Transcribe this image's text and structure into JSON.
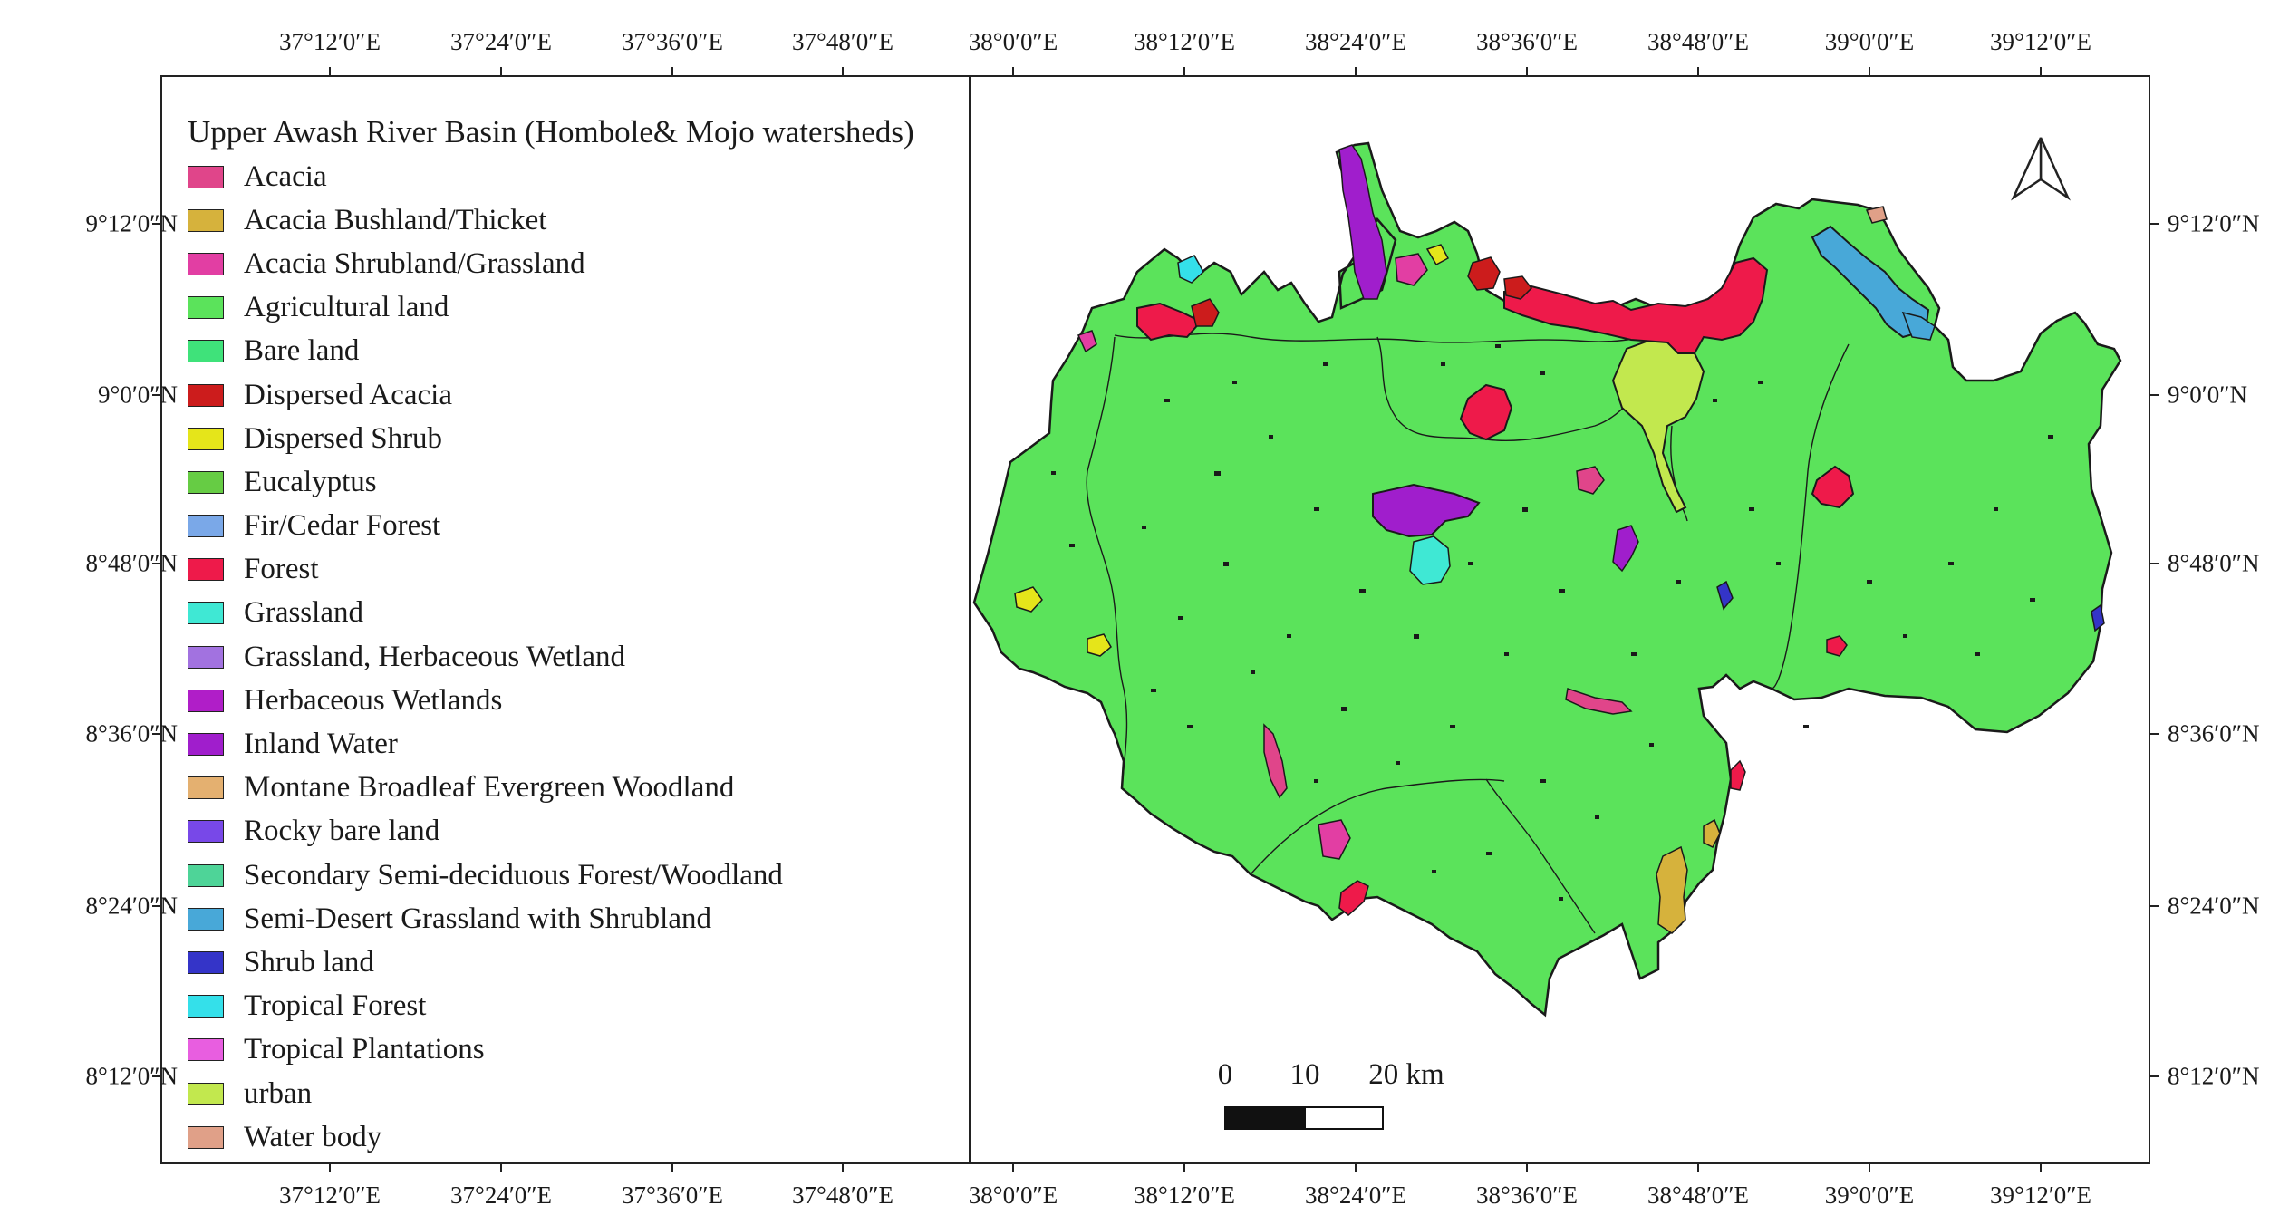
{
  "legend": {
    "title": "Upper Awash River Basin (Hombole& Mojo watersheds)",
    "items": [
      {
        "label": "Acacia",
        "color": "#e0458a"
      },
      {
        "label": "Acacia Bushland/Thicket",
        "color": "#d6b23c"
      },
      {
        "label": "Acacia Shrubland/Grassland",
        "color": "#e23ea3"
      },
      {
        "label": "Agricultural land",
        "color": "#5be35b"
      },
      {
        "label": "Bare land",
        "color": "#3fe27a"
      },
      {
        "label": "Dispersed Acacia",
        "color": "#cc1c1c"
      },
      {
        "label": "Dispersed Shrub",
        "color": "#e5e51a"
      },
      {
        "label": "Eucalyptus",
        "color": "#66cc44"
      },
      {
        "label": "Fir/Cedar Forest",
        "color": "#7aa8e8"
      },
      {
        "label": "Forest",
        "color": "#ee1a4a"
      },
      {
        "label": "Grassland",
        "color": "#3fe8d4"
      },
      {
        "label": "Grassland, Herbaceous Wetland",
        "color": "#a272e0"
      },
      {
        "label": "Herbaceous Wetlands",
        "color": "#b01ec8"
      },
      {
        "label": "Inland Water",
        "color": "#a01ecc"
      },
      {
        "label": "Montane Broadleaf Evergreen Woodland",
        "color": "#e4b070"
      },
      {
        "label": "Rocky bare land",
        "color": "#7848e8"
      },
      {
        "label": "Secondary Semi-deciduous Forest/Woodland",
        "color": "#4ed498"
      },
      {
        "label": "Semi-Desert Grassland with Shrubland",
        "color": "#48a8d8"
      },
      {
        "label": "Shrub land",
        "color": "#3434c8"
      },
      {
        "label": "Tropical Forest",
        "color": "#34e0ea"
      },
      {
        "label": "Tropical Plantations",
        "color": "#e85ee0"
      },
      {
        "label": "urban",
        "color": "#c2e84e"
      },
      {
        "label": "Water body",
        "color": "#e0a088"
      }
    ]
  },
  "graticule": {
    "longitudes": [
      "37°12′0″E",
      "37°24′0″E",
      "37°36′0″E",
      "37°48′0″E",
      "38°0′0″E",
      "38°12′0″E",
      "38°24′0″E",
      "38°36′0″E",
      "38°48′0″E",
      "39°0′0″E",
      "39°12′0″E"
    ],
    "latitudes": [
      "9°12′0″N",
      "9°0′0″N",
      "8°48′0″N",
      "8°36′0″N",
      "8°24′0″N",
      "8°12′0″N"
    ]
  },
  "scale_bar": {
    "labels": [
      "0",
      "10",
      "20 km"
    ]
  },
  "north_arrow": {
    "icon": "north-arrow-icon"
  },
  "map_colors": {
    "outline": "#1a1a1a",
    "base": "#5be35b"
  }
}
